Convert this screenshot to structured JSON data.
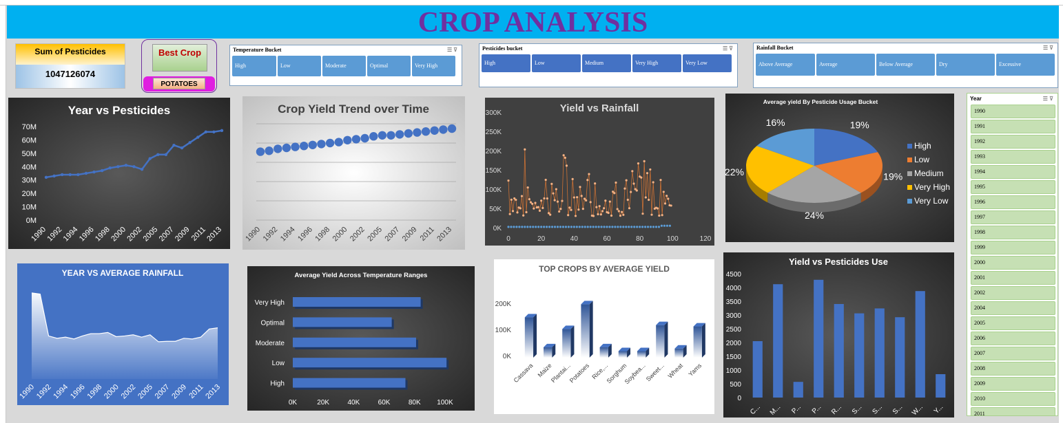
{
  "title": "CROP ANALYSIS",
  "kpi": {
    "label": "Sum of Pesticides",
    "value": "1047126074"
  },
  "best": {
    "label": "Best Crop",
    "value": "POTATOES"
  },
  "slicers": [
    {
      "title": "Temperature Bucket",
      "items": [
        "High",
        "Low",
        "Moderate",
        "Optimal",
        "Very High"
      ]
    },
    {
      "title": "Pesticides bucket",
      "items": [
        "High",
        "Low",
        "Medium",
        "Very High",
        "Very Low"
      ]
    },
    {
      "title": "Rainfall Bucket",
      "items": [
        "Above Average",
        "Average",
        "Below Average",
        "Dry",
        "Excessive"
      ]
    }
  ],
  "year_slicer": {
    "title": "Year",
    "items": [
      "1990",
      "1991",
      "1992",
      "1993",
      "1994",
      "1995",
      "1996",
      "1997",
      "1998",
      "1999",
      "2000",
      "2001",
      "2002",
      "2004",
      "2005",
      "2006",
      "2007",
      "2008",
      "2009",
      "2010",
      "2011"
    ]
  },
  "icons": {
    "multiselect": "multiselect-icon",
    "filter": "clear-filter-icon"
  },
  "chart_data": [
    {
      "id": "c1",
      "type": "line",
      "title": "Year vs Pesticides",
      "x": [
        "1990",
        "1991",
        "1992",
        "1993",
        "1994",
        "1995",
        "1996",
        "1997",
        "1998",
        "1999",
        "2000",
        "2001",
        "2002",
        "2004",
        "2005",
        "2006",
        "2007",
        "2008",
        "2009",
        "2010",
        "2011",
        "2012",
        "2013"
      ],
      "x_ticks": [
        "1990",
        "1992",
        "1994",
        "1996",
        "1998",
        "2000",
        "2002",
        "2005",
        "2007",
        "2009",
        "2011",
        "2013"
      ],
      "values": [
        32,
        33,
        34,
        34,
        34,
        35,
        36,
        37,
        39,
        40,
        41,
        40,
        38,
        46,
        49,
        49,
        56,
        54,
        58,
        62,
        66,
        66,
        67
      ],
      "yticks": [
        "70M",
        "60M",
        "50M",
        "40M",
        "30M",
        "20M",
        "10M",
        "0M"
      ],
      "ylim": [
        0,
        75
      ]
    },
    {
      "id": "c2",
      "type": "line",
      "title": "Crop Yield Trend over Time",
      "x": [
        "1990",
        "1991",
        "1992",
        "1993",
        "1994",
        "1995",
        "1996",
        "1997",
        "1998",
        "1999",
        "2000",
        "2001",
        "2002",
        "2004",
        "2005",
        "2006",
        "2007",
        "2008",
        "2009",
        "2010",
        "2011",
        "2012",
        "2013"
      ],
      "x_ticks": [
        "1990",
        "1992",
        "1994",
        "1996",
        "1998",
        "2000",
        "2002",
        "2005",
        "2007",
        "2009",
        "2011",
        "2013"
      ],
      "values": [
        71,
        72,
        74,
        75,
        76,
        77,
        78,
        79,
        80,
        81,
        83,
        84,
        85,
        87,
        88,
        88,
        89,
        90,
        91,
        92,
        93,
        94,
        95
      ],
      "ylim": [
        0,
        100
      ]
    },
    {
      "id": "c3",
      "type": "scatter",
      "title": "Yield vs Rainfall",
      "yticks": [
        "300K",
        "250K",
        "200K",
        "150K",
        "100K",
        "50K",
        "0K"
      ],
      "xticks": [
        "0",
        "20",
        "40",
        "60",
        "80",
        "100",
        "120"
      ],
      "xlim": [
        0,
        120
      ],
      "ylim": [
        0,
        300000
      ]
    },
    {
      "id": "c4",
      "type": "pie",
      "title": "Average yield By Pesticide Usage Bucket",
      "categories": [
        "High",
        "Low",
        "Medium",
        "Very High",
        "Very Low"
      ],
      "values": [
        19,
        19,
        24,
        22,
        16
      ],
      "labels": [
        "19%",
        "19%",
        "24%",
        "22%",
        "16%"
      ],
      "colors": [
        "#4472c4",
        "#ed7d31",
        "#a5a5a5",
        "#ffc000",
        "#5b9bd5"
      ],
      "legend": "right"
    },
    {
      "id": "c5",
      "type": "area",
      "title": "YEAR VS AVERAGE RAINFALL",
      "x": [
        "1990",
        "1991",
        "1992",
        "1993",
        "1994",
        "1995",
        "1996",
        "1997",
        "1998",
        "1999",
        "2000",
        "2001",
        "2002",
        "2004",
        "2005",
        "2006",
        "2007",
        "2008",
        "2009",
        "2010",
        "2011",
        "2012",
        "2013"
      ],
      "x_ticks": [
        "1990",
        "1992",
        "1994",
        "1996",
        "1998",
        "2000",
        "2002",
        "2005",
        "2007",
        "2009",
        "2011",
        "2013"
      ],
      "values": [
        3.7,
        3.65,
        1.85,
        1.75,
        1.8,
        1.72,
        1.85,
        1.95,
        1.95,
        2.0,
        1.82,
        1.85,
        1.9,
        1.8,
        1.9,
        1.6,
        1.62,
        1.62,
        1.75,
        1.72,
        1.8,
        2.15,
        2.2
      ],
      "ylim": [
        0,
        4.2
      ]
    },
    {
      "id": "c6",
      "type": "bar",
      "title": "Average Yield Across Temperature Ranges",
      "categories": [
        "Very High",
        "Optimal",
        "Moderate",
        "Low",
        "High"
      ],
      "values": [
        84000,
        65000,
        81000,
        101000,
        74000
      ],
      "xticks": [
        "0K",
        "20K",
        "40K",
        "60K",
        "80K",
        "100K"
      ],
      "xlim": [
        0,
        105000
      ]
    },
    {
      "id": "c7",
      "type": "bar",
      "title": "TOP CROPS BY AVERAGE YIELD",
      "categories": [
        "Cassava",
        "Maize",
        "Plantai...",
        "Potatoes",
        "Rice,...",
        "Sorghum",
        "Soybea...",
        "Sweet...",
        "Wheat",
        "Yams"
      ],
      "values": [
        155000,
        40000,
        110000,
        205000,
        40000,
        25000,
        25000,
        125000,
        35000,
        120000
      ],
      "yticks": [
        "200K",
        "100K",
        "0K"
      ],
      "ylim": [
        0,
        250000
      ]
    },
    {
      "id": "c8",
      "type": "bar",
      "title": "Yield vs Pesticides Use",
      "categories": [
        "C...",
        "M...",
        "P...",
        "P...",
        "R...",
        "S...",
        "S...",
        "S...",
        "W...",
        "Y..."
      ],
      "values": [
        2050,
        4120,
        570,
        4280,
        3400,
        3060,
        3240,
        2920,
        3870,
        850
      ],
      "yticks": [
        "4500",
        "4000",
        "3500",
        "3000",
        "2500",
        "2000",
        "1500",
        "1000",
        "500",
        "0"
      ],
      "ylim": [
        0,
        4500
      ]
    }
  ]
}
